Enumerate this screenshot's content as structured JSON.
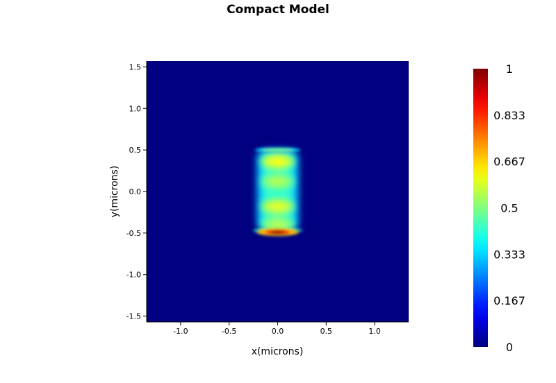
{
  "chart_data": {
    "type": "heatmap",
    "title": "Compact Model",
    "xlabel": "x(microns)",
    "ylabel": "y(microns)",
    "xlim": [
      -1.35,
      1.35
    ],
    "ylim": [
      -1.57,
      1.57
    ],
    "xticks": [
      -1.0,
      -0.5,
      0.0,
      0.5,
      1.0
    ],
    "xtick_labels": [
      "-1.0",
      "-0.5",
      "0.0",
      "0.5",
      "1.0"
    ],
    "yticks": [
      1.5,
      1.0,
      0.5,
      0.0,
      -0.5,
      -1.0,
      -1.5
    ],
    "ytick_labels": [
      "1.5",
      "1.0",
      "0.5",
      "0.0",
      "-0.5",
      "-1.0",
      "-1.5"
    ],
    "colormap": "jet",
    "colorbar": {
      "range": [
        0,
        1
      ],
      "ticks": [
        1,
        0.833,
        0.667,
        0.5,
        0.333,
        0.167,
        0
      ],
      "tick_labels": [
        "1",
        "0.833",
        "0.667",
        "0.5",
        "0.333",
        "0.167",
        "0"
      ]
    },
    "features": [
      {
        "type": "hotspot",
        "x": 0.0,
        "y": -0.49,
        "value": 1.0
      },
      {
        "type": "lobe",
        "x": 0.0,
        "y": 0.36,
        "value": 0.62
      },
      {
        "type": "lobe",
        "x": 0.0,
        "y": 0.12,
        "value": 0.55
      },
      {
        "type": "lobe",
        "x": 0.0,
        "y": -0.18,
        "value": 0.6
      },
      {
        "type": "lobe",
        "x": 0.0,
        "y": -0.4,
        "value": 0.55
      },
      {
        "type": "edge",
        "x": 0.0,
        "y": 0.5,
        "value": 0.5
      },
      {
        "type": "edge",
        "x": 0.0,
        "y": -0.47,
        "value": 0.6
      }
    ]
  }
}
